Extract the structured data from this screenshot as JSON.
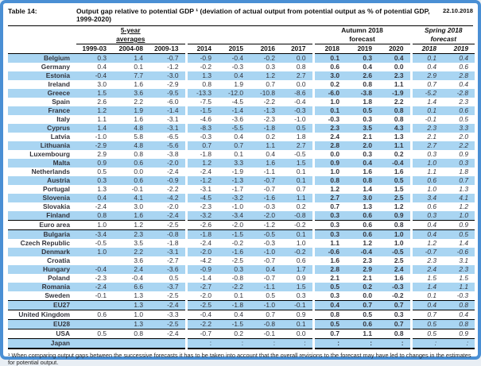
{
  "header": {
    "table_label": "Table 14:",
    "title": "Output gap relative to potential GDP ¹ (deviation of actual output from potential output as % of potential GDP, 1999-2020)",
    "date": "22.10.2018"
  },
  "table": {
    "groups": {
      "five_year": [
        "5-year",
        "averages"
      ],
      "autumn": [
        "Autumn 2018",
        "forecast"
      ],
      "spring": [
        "Spring 2018",
        "forecast"
      ]
    },
    "years": [
      "1999-03",
      "2004-08",
      "2009-13",
      "2014",
      "2015",
      "2016",
      "2017",
      "2018",
      "2019",
      "2020",
      "2018",
      "2019"
    ],
    "rows": [
      {
        "name": "Belgium",
        "values": [
          "0.3",
          "1.4",
          "-0.7",
          "-0.9",
          "-0.4",
          "-0.2",
          "0.0",
          "0.1",
          "0.3",
          "0.4",
          "0.1",
          "0.4"
        ]
      },
      {
        "name": "Germany",
        "values": [
          "0.4",
          "0.1",
          "-1.2",
          "-0.2",
          "-0.3",
          "0.3",
          "0.8",
          "0.6",
          "0.4",
          "0.0",
          "0.4",
          "0.6"
        ]
      },
      {
        "name": "Estonia",
        "values": [
          "-0.4",
          "7.7",
          "-3.0",
          "1.3",
          "0.4",
          "1.2",
          "2.7",
          "3.0",
          "2.6",
          "2.3",
          "2.9",
          "2.8"
        ]
      },
      {
        "name": "Ireland",
        "values": [
          "3.0",
          "1.6",
          "-2.9",
          "0.8",
          "1.9",
          "0.7",
          "0.0",
          "0.2",
          "0.8",
          "1.1",
          "0.7",
          "0.4"
        ]
      },
      {
        "name": "Greece",
        "values": [
          "1.5",
          "3.6",
          "-9.5",
          "-13.3",
          "-12.0",
          "-10.8",
          "-8.6",
          "-6.0",
          "-3.8",
          "-1.9",
          "-5.2",
          "-2.8"
        ]
      },
      {
        "name": "Spain",
        "values": [
          "2.6",
          "2.2",
          "-6.0",
          "-7.5",
          "-4.5",
          "-2.2",
          "-0.4",
          "1.0",
          "1.8",
          "2.2",
          "1.4",
          "2.3"
        ]
      },
      {
        "name": "France",
        "values": [
          "1.2",
          "1.9",
          "-1.4",
          "-1.5",
          "-1.4",
          "-1.3",
          "-0.3",
          "0.1",
          "0.5",
          "0.8",
          "0.1",
          "0.6"
        ]
      },
      {
        "name": "Italy",
        "values": [
          "1.1",
          "1.6",
          "-3.1",
          "-4.6",
          "-3.6",
          "-2.3",
          "-1.0",
          "-0.3",
          "0.3",
          "0.8",
          "-0.1",
          "0.5"
        ]
      },
      {
        "name": "Cyprus",
        "values": [
          "1.4",
          "4.8",
          "-3.1",
          "-8.3",
          "-5.5",
          "-1.8",
          "0.5",
          "2.3",
          "3.5",
          "4.3",
          "2.3",
          "3.3"
        ]
      },
      {
        "name": "Latvia",
        "values": [
          "-1.0",
          "5.8",
          "-6.5",
          "-0.3",
          "0.4",
          "0.2",
          "1.8",
          "2.4",
          "2.1",
          "1.3",
          "2.1",
          "2.0"
        ]
      },
      {
        "name": "Lithuania",
        "values": [
          "-2.9",
          "4.8",
          "-5.6",
          "0.7",
          "0.7",
          "1.1",
          "2.7",
          "2.8",
          "2.0",
          "1.1",
          "2.7",
          "2.2"
        ]
      },
      {
        "name": "Luxembourg",
        "values": [
          "2.9",
          "0.8",
          "-3.8",
          "-1.8",
          "0.1",
          "0.4",
          "-0.5",
          "0.0",
          "0.3",
          "0.2",
          "0.3",
          "0.9"
        ]
      },
      {
        "name": "Malta",
        "values": [
          "0.9",
          "0.6",
          "-2.0",
          "1.2",
          "3.3",
          "1.6",
          "1.5",
          "0.9",
          "0.4",
          "-0.4",
          "1.0",
          "0.3"
        ]
      },
      {
        "name": "Netherlands",
        "values": [
          "0.5",
          "0.0",
          "-2.4",
          "-2.4",
          "-1.9",
          "-1.1",
          "0.1",
          "1.0",
          "1.6",
          "1.6",
          "1.1",
          "1.8"
        ]
      },
      {
        "name": "Austria",
        "values": [
          "0.3",
          "0.6",
          "-0.9",
          "-1.2",
          "-1.3",
          "-0.7",
          "0.1",
          "0.8",
          "0.8",
          "0.5",
          "0.6",
          "0.7"
        ]
      },
      {
        "name": "Portugal",
        "values": [
          "1.3",
          "-0.1",
          "-2.2",
          "-3.1",
          "-1.7",
          "-0.7",
          "0.7",
          "1.2",
          "1.4",
          "1.5",
          "1.0",
          "1.3"
        ]
      },
      {
        "name": "Slovenia",
        "values": [
          "0.4",
          "4.1",
          "-4.2",
          "-4.5",
          "-3.2",
          "-1.6",
          "1.1",
          "2.7",
          "3.0",
          "2.5",
          "3.4",
          "4.1"
        ]
      },
      {
        "name": "Slovakia",
        "values": [
          "-2.4",
          "3.0",
          "-2.0",
          "-2.3",
          "-1.0",
          "-0.3",
          "0.2",
          "0.7",
          "1.3",
          "1.2",
          "0.6",
          "1.2"
        ]
      },
      {
        "name": "Finland",
        "values": [
          "0.8",
          "1.6",
          "-2.4",
          "-3.2",
          "-3.4",
          "-2.0",
          "-0.8",
          "0.3",
          "0.6",
          "0.9",
          "0.3",
          "1.0"
        ]
      },
      {
        "name": "Euro area",
        "values": [
          "1.0",
          "1.2",
          "-2.5",
          "-2.6",
          "-2.0",
          "-1.2",
          "-0.2",
          "0.3",
          "0.6",
          "0.8",
          "0.4",
          "0.9"
        ],
        "rule": true
      },
      {
        "name": "Bulgaria",
        "values": [
          "-3.4",
          "2.3",
          "-0.8",
          "-1.8",
          "-1.5",
          "-0.5",
          "0.1",
          "0.3",
          "0.6",
          "1.0",
          "0.4",
          "0.5"
        ]
      },
      {
        "name": "Czech Republic",
        "values": [
          "-0.5",
          "3.5",
          "-1.8",
          "-2.4",
          "-0.2",
          "-0.3",
          "1.0",
          "1.1",
          "1.2",
          "1.0",
          "1.2",
          "1.4"
        ]
      },
      {
        "name": "Denmark",
        "values": [
          "1.0",
          "2.2",
          "-3.1",
          "-2.0",
          "-1.6",
          "-1.0",
          "-0.2",
          "-0.6",
          "-0.4",
          "-0.5",
          "-0.7",
          "-0.6"
        ]
      },
      {
        "name": "Croatia",
        "values": [
          "",
          "3.6",
          "-2.7",
          "-4.2",
          "-2.5",
          "-0.7",
          "0.6",
          "1.6",
          "2.3",
          "2.5",
          "2.3",
          "3.1"
        ]
      },
      {
        "name": "Hungary",
        "values": [
          "-0.4",
          "2.4",
          "-3.6",
          "-0.9",
          "0.3",
          "0.4",
          "1.7",
          "2.8",
          "2.9",
          "2.4",
          "2.4",
          "2.3"
        ]
      },
      {
        "name": "Poland",
        "values": [
          "-2.3",
          "-0.4",
          "0.5",
          "-1.4",
          "-0.8",
          "-0.7",
          "0.9",
          "2.1",
          "2.1",
          "1.6",
          "1.5",
          "1.5"
        ]
      },
      {
        "name": "Romania",
        "values": [
          "-2.4",
          "6.6",
          "-3.7",
          "-2.7",
          "-2.2",
          "-1.1",
          "1.5",
          "0.5",
          "0.2",
          "-0.3",
          "1.4",
          "1.1"
        ]
      },
      {
        "name": "Sweden",
        "values": [
          "-0.1",
          "1.3",
          "-2.5",
          "-2.0",
          "0.1",
          "0.5",
          "0.3",
          "0.3",
          "0.0",
          "-0.2",
          "0.1",
          "-0.3"
        ]
      },
      {
        "name": "EU27",
        "values": [
          "",
          "1.3",
          "-2.4",
          "-2.5",
          "-1.8",
          "-1.0",
          "-0.1",
          "0.4",
          "0.7",
          "0.7",
          "0.4",
          "0.8"
        ],
        "rule": true
      },
      {
        "name": "United Kingdom",
        "values": [
          "0.6",
          "1.0",
          "-3.3",
          "-0.4",
          "0.4",
          "0.7",
          "0.9",
          "0.8",
          "0.5",
          "0.3",
          "0.7",
          "0.4"
        ]
      },
      {
        "name": "EU28",
        "values": [
          "",
          "1.3",
          "-2.5",
          "-2.2",
          "-1.5",
          "-0.8",
          "0.1",
          "0.5",
          "0.6",
          "0.7",
          "0.5",
          "0.8"
        ],
        "rule": true
      },
      {
        "name": "USA",
        "values": [
          "0.5",
          "0.8",
          "-2.4",
          "-0.7",
          "0.2",
          "-0.1",
          "0.0",
          "0.7",
          "1.1",
          "0.8",
          "0.5",
          "0.9"
        ]
      },
      {
        "name": "Japan",
        "values": [
          "",
          "",
          "",
          ":",
          ":",
          ":",
          ":",
          ":",
          ":",
          ":",
          ":",
          ":"
        ],
        "rule": true
      }
    ]
  },
  "footnote": "¹ When comparing output gaps between the successive forecasts it has to be taken into account that the overall revisions to the forecast may have led to changes in the estimates for potential output."
}
